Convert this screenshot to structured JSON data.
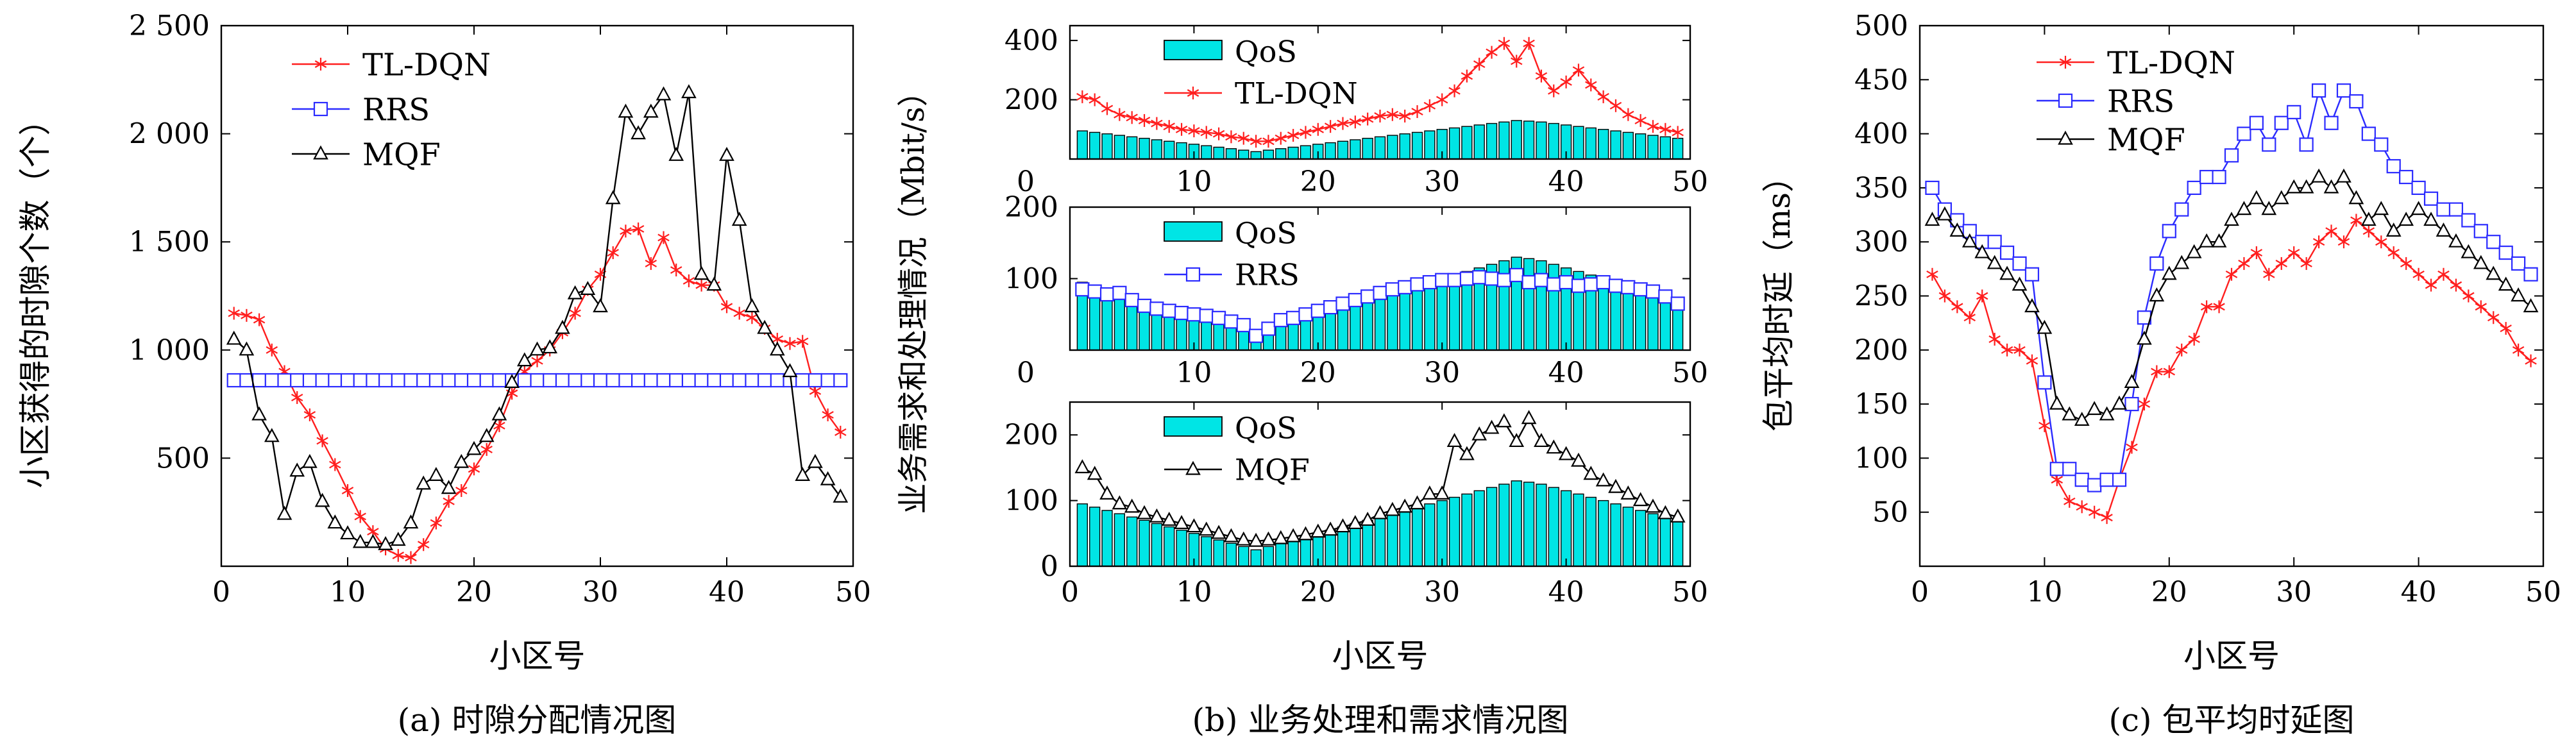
{
  "colors": {
    "tl": "#ff1e1e",
    "rrs": "#2b2bff",
    "mqf": "#000000",
    "qos": "#00e5e5"
  },
  "captions": [
    "(a) 时隙分配情况图",
    "(b) 业务处理和需求情况图",
    "(c) 包平均时延图"
  ],
  "chart_data": [
    {
      "type": "line",
      "id": "a",
      "xlabel": "小区号",
      "ylabel": "小区获得的时隙个数（个）",
      "xlim": [
        0,
        50
      ],
      "ylim": [
        0,
        2500
      ],
      "xticks": [
        0,
        10,
        20,
        30,
        40,
        50
      ],
      "yticks": [
        500,
        1000,
        1500,
        2000,
        2500
      ],
      "ytick_labels": [
        "500",
        "1 000",
        "1 500",
        "2 000",
        "2 500"
      ],
      "legend_position": "top-left",
      "x": [
        1,
        2,
        3,
        4,
        5,
        6,
        7,
        8,
        9,
        10,
        11,
        12,
        13,
        14,
        15,
        16,
        17,
        18,
        19,
        20,
        21,
        22,
        23,
        24,
        25,
        26,
        27,
        28,
        29,
        30,
        31,
        32,
        33,
        34,
        35,
        36,
        37,
        38,
        39,
        40,
        41,
        42,
        43,
        44,
        45,
        46,
        47,
        48,
        49
      ],
      "series": [
        {
          "name": "TL-DQN",
          "key": "tl",
          "marker": "asterisk",
          "values": [
            1170,
            1160,
            1140,
            1000,
            900,
            780,
            700,
            580,
            470,
            350,
            230,
            160,
            80,
            50,
            40,
            100,
            200,
            300,
            350,
            450,
            540,
            650,
            800,
            900,
            950,
            1000,
            1080,
            1170,
            1280,
            1350,
            1450,
            1550,
            1560,
            1400,
            1520,
            1370,
            1320,
            1300,
            1300,
            1200,
            1170,
            1150,
            1100,
            1050,
            1030,
            1040,
            810,
            700,
            620
          ]
        },
        {
          "name": "RRS",
          "key": "rrs",
          "marker": "square",
          "values": [
            860,
            860,
            860,
            860,
            860,
            860,
            860,
            860,
            860,
            860,
            860,
            860,
            860,
            860,
            860,
            860,
            860,
            860,
            860,
            860,
            860,
            860,
            860,
            860,
            860,
            860,
            860,
            860,
            860,
            860,
            860,
            860,
            860,
            860,
            860,
            860,
            860,
            860,
            860,
            860,
            860,
            860,
            860,
            860,
            860,
            860,
            860,
            860,
            860
          ]
        },
        {
          "name": "MQF",
          "key": "mqf",
          "marker": "triangle",
          "values": [
            1050,
            1000,
            700,
            600,
            240,
            440,
            480,
            300,
            200,
            150,
            110,
            110,
            100,
            120,
            200,
            380,
            420,
            360,
            480,
            540,
            600,
            700,
            850,
            950,
            1000,
            1010,
            1100,
            1260,
            1280,
            1200,
            1700,
            2100,
            2000,
            2100,
            2180,
            1900,
            2190,
            1350,
            1300,
            1900,
            1600,
            1200,
            1100,
            1000,
            900,
            420,
            480,
            400,
            320
          ]
        }
      ]
    },
    {
      "type": "bar+line",
      "id": "b",
      "xlabel": "小区号",
      "ylabel": "业务需求和处理情况（Mbit/s）",
      "xlim": [
        0,
        50
      ],
      "xticks": [
        10,
        20,
        30,
        40,
        50
      ],
      "bottom_xticks": [
        0,
        10,
        20,
        30,
        40,
        50
      ],
      "x": [
        1,
        2,
        3,
        4,
        5,
        6,
        7,
        8,
        9,
        10,
        11,
        12,
        13,
        14,
        15,
        16,
        17,
        18,
        19,
        20,
        21,
        22,
        23,
        24,
        25,
        26,
        27,
        28,
        29,
        30,
        31,
        32,
        33,
        34,
        35,
        36,
        37,
        38,
        39,
        40,
        41,
        42,
        43,
        44,
        45,
        46,
        47,
        48,
        49
      ],
      "qos": [
        95,
        90,
        85,
        80,
        75,
        70,
        65,
        60,
        55,
        50,
        45,
        40,
        35,
        30,
        25,
        30,
        35,
        40,
        45,
        50,
        55,
        60,
        65,
        70,
        75,
        80,
        85,
        90,
        95,
        100,
        105,
        110,
        115,
        120,
        125,
        130,
        128,
        125,
        120,
        115,
        110,
        105,
        100,
        95,
        90,
        85,
        80,
        75,
        70
      ],
      "panels": [
        {
          "ylim": [
            0,
            450
          ],
          "yticks": [
            0,
            200,
            400
          ],
          "series": [
            {
              "name": "QoS",
              "key": "qos",
              "type": "bar"
            },
            {
              "name": "TL-DQN",
              "key": "tl",
              "marker": "asterisk",
              "values": [
                210,
                200,
                170,
                150,
                140,
                130,
                120,
                110,
                100,
                95,
                90,
                85,
                75,
                70,
                60,
                60,
                70,
                80,
                90,
                100,
                110,
                120,
                125,
                135,
                145,
                150,
                145,
                160,
                180,
                200,
                230,
                280,
                320,
                360,
                390,
                330,
                390,
                280,
                230,
                260,
                300,
                250,
                210,
                180,
                150,
                130,
                110,
                100,
                90
              ]
            }
          ]
        },
        {
          "ylim": [
            0,
            200
          ],
          "yticks": [
            0,
            100,
            200
          ],
          "series": [
            {
              "name": "QoS",
              "key": "qos",
              "type": "bar"
            },
            {
              "name": "RRS",
              "key": "rrs",
              "marker": "square",
              "values": [
                85,
                82,
                78,
                80,
                70,
                62,
                58,
                55,
                52,
                50,
                48,
                45,
                40,
                35,
                20,
                30,
                42,
                45,
                50,
                55,
                60,
                65,
                70,
                75,
                80,
                85,
                88,
                92,
                95,
                98,
                98,
                100,
                102,
                100,
                98,
                105,
                95,
                98,
                92,
                95,
                90,
                92,
                95,
                90,
                88,
                85,
                82,
                75,
                65
              ]
            }
          ]
        },
        {
          "ylim": [
            0,
            250
          ],
          "yticks": [
            0,
            100,
            200
          ],
          "series": [
            {
              "name": "QoS",
              "key": "qos",
              "type": "bar"
            },
            {
              "name": "MQF",
              "key": "mqf",
              "marker": "triangle",
              "values": [
                150,
                140,
                110,
                95,
                90,
                80,
                75,
                70,
                65,
                60,
                55,
                50,
                45,
                40,
                38,
                40,
                42,
                45,
                48,
                52,
                55,
                60,
                65,
                70,
                80,
                85,
                90,
                95,
                110,
                110,
                190,
                170,
                200,
                210,
                220,
                190,
                225,
                190,
                180,
                170,
                160,
                140,
                130,
                120,
                110,
                100,
                90,
                80,
                75
              ]
            }
          ]
        }
      ]
    },
    {
      "type": "line",
      "id": "c",
      "xlabel": "小区号",
      "ylabel": "包平均时延（ms）",
      "xlim": [
        0,
        50
      ],
      "ylim": [
        0,
        500
      ],
      "xticks": [
        0,
        10,
        20,
        30,
        40,
        50
      ],
      "yticks": [
        50,
        100,
        150,
        200,
        250,
        300,
        350,
        400,
        450,
        500
      ],
      "legend_position": "top-center",
      "x": [
        1,
        2,
        3,
        4,
        5,
        6,
        7,
        8,
        9,
        10,
        11,
        12,
        13,
        14,
        15,
        16,
        17,
        18,
        19,
        20,
        21,
        22,
        23,
        24,
        25,
        26,
        27,
        28,
        29,
        30,
        31,
        32,
        33,
        34,
        35,
        36,
        37,
        38,
        39,
        40,
        41,
        42,
        43,
        44,
        45,
        46,
        47,
        48,
        49
      ],
      "series": [
        {
          "name": "TL-DQN",
          "key": "tl",
          "marker": "asterisk",
          "values": [
            270,
            250,
            240,
            230,
            250,
            210,
            200,
            200,
            190,
            130,
            80,
            60,
            55,
            50,
            45,
            80,
            110,
            150,
            180,
            180,
            200,
            210,
            240,
            240,
            270,
            280,
            290,
            270,
            280,
            290,
            280,
            300,
            310,
            300,
            320,
            310,
            300,
            290,
            280,
            270,
            260,
            270,
            260,
            250,
            240,
            230,
            220,
            200,
            190
          ]
        },
        {
          "name": "RRS",
          "key": "rrs",
          "marker": "square",
          "values": [
            350,
            330,
            320,
            310,
            300,
            300,
            290,
            280,
            270,
            170,
            90,
            90,
            80,
            75,
            80,
            80,
            150,
            230,
            280,
            310,
            330,
            350,
            360,
            360,
            380,
            400,
            410,
            390,
            410,
            420,
            390,
            440,
            410,
            440,
            430,
            400,
            390,
            370,
            360,
            350,
            340,
            330,
            330,
            320,
            310,
            300,
            290,
            280,
            270
          ]
        },
        {
          "name": "MQF",
          "key": "mqf",
          "marker": "triangle",
          "values": [
            320,
            325,
            310,
            300,
            290,
            280,
            270,
            260,
            240,
            220,
            150,
            140,
            135,
            145,
            140,
            150,
            170,
            210,
            250,
            270,
            280,
            290,
            300,
            300,
            320,
            330,
            340,
            330,
            340,
            350,
            350,
            360,
            350,
            360,
            340,
            320,
            330,
            310,
            320,
            330,
            320,
            310,
            300,
            290,
            280,
            270,
            260,
            250,
            240
          ]
        }
      ]
    }
  ]
}
